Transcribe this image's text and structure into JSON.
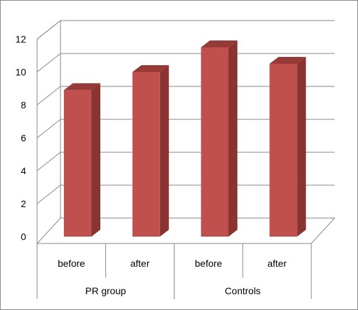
{
  "chart_data": {
    "type": "bar",
    "style": "3d-column",
    "groups": [
      {
        "label": "PR group",
        "categories": [
          "before",
          "after"
        ]
      },
      {
        "label": "Controls",
        "categories": [
          "before",
          "after"
        ]
      }
    ],
    "categories": [
      "before",
      "after",
      "before",
      "after"
    ],
    "series": [
      {
        "values": [
          8.9,
          10.0,
          11.5,
          10.5
        ],
        "color": "#C0504D"
      }
    ],
    "title": "",
    "xlabel": "",
    "ylabel": "",
    "ylim": [
      0,
      12
    ],
    "yticks": [
      0,
      2,
      4,
      6,
      8,
      10,
      12
    ],
    "grid": true,
    "legend": "none"
  }
}
